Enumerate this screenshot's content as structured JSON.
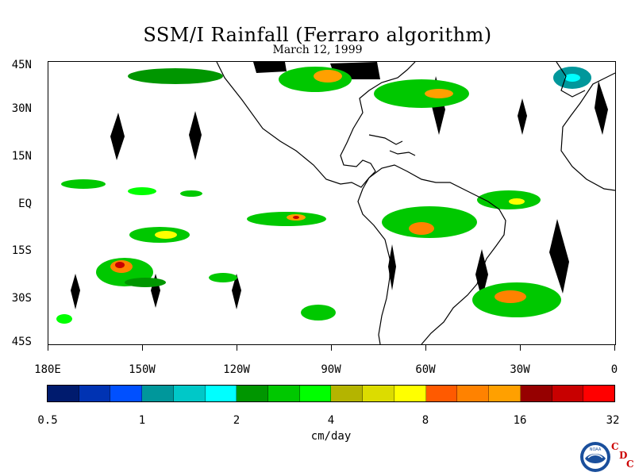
{
  "title": "SSM/I Rainfall (Ferraro algorithm)",
  "subtitle": "March 12, 1999",
  "map": {
    "lat_labels": [
      "45N",
      "30N",
      "15N",
      "EQ",
      "15S",
      "30S",
      "45S"
    ],
    "lon_labels": [
      "180E",
      "150W",
      "120W",
      "90W",
      "60W",
      "30W",
      "0"
    ],
    "extent": {
      "lon_min": -180,
      "lon_max": 0,
      "lat_min": -45,
      "lat_max": 45
    },
    "missing_data_color": "#000000",
    "land_outline_color": "#000000"
  },
  "colorbar": {
    "unit": "cm/day",
    "tick_labels": [
      "0.5",
      "1",
      "2",
      "4",
      "8",
      "16",
      "32"
    ],
    "colors": [
      "#001b6e",
      "#0033b3",
      "#0050ff",
      "#00979b",
      "#00c8c8",
      "#00ffff",
      "#009600",
      "#00c800",
      "#00ff00",
      "#b4b400",
      "#dcdc00",
      "#ffff00",
      "#ff5a00",
      "#ff8200",
      "#ffa000",
      "#960000",
      "#c80000",
      "#ff0000"
    ]
  },
  "logo": {
    "name": "noaa-logo",
    "text": "NOAA",
    "letters": [
      "C",
      "D",
      "C"
    ],
    "colors": {
      "ring": "#1a4f9c",
      "inner": "#ffffff",
      "accent": "#cc0000"
    }
  }
}
